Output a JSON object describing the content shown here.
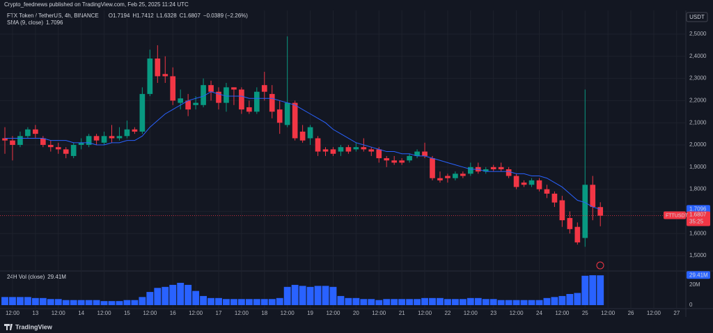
{
  "header": "Crypto_feednews published on TradingView.com, Feb 25, 2025 11:24 UTC",
  "footer": "TradingView",
  "chart_data": {
    "type": "candlestick",
    "title": "FTX Token / TetherUS, 4h, BINANCE",
    "legend_values": [
      "O1.7194",
      "H1.7412",
      "L1.6328",
      "C1.6807",
      "−0.0389 (−2.26%)"
    ],
    "currency": "USDT",
    "symbol": "FTTUSDT",
    "price_badge": "1.6807",
    "countdown": "35:25",
    "up_color": "#089981",
    "down_color": "#f23645",
    "grid": true,
    "open": [
      2.03,
      2.02,
      2.0,
      2.04,
      2.07,
      2.03,
      2.0,
      1.99,
      1.98,
      1.95,
      2.0,
      2.0,
      2.04,
      2.01,
      2.04,
      2.03,
      2.04,
      2.07,
      2.06,
      2.23,
      2.39,
      2.32,
      2.31,
      2.19,
      2.2,
      2.18,
      2.18,
      2.27,
      2.24,
      2.19,
      2.26,
      2.25,
      2.17,
      2.15,
      2.27,
      2.23,
      2.16,
      2.09,
      2.19,
      2.06,
      2.03,
      2.03,
      1.98,
      1.98,
      1.97,
      1.99,
      1.98,
      1.99,
      1.98,
      1.98,
      1.94,
      1.93,
      1.93,
      1.93,
      1.95,
      1.97,
      1.94,
      1.85,
      1.86,
      1.85,
      1.87,
      1.87,
      1.9,
      1.88,
      1.9,
      1.9,
      1.89,
      1.86,
      1.83,
      1.82,
      1.84,
      1.8,
      1.78,
      1.75,
      1.67,
      1.63,
      1.58,
      1.82,
      1.7194
    ],
    "high": [
      2.08,
      2.04,
      2.06,
      2.08,
      2.09,
      2.04,
      2.02,
      2.01,
      1.99,
      2.01,
      2.03,
      2.05,
      2.05,
      2.06,
      2.09,
      2.08,
      2.11,
      2.08,
      2.26,
      2.43,
      2.45,
      2.4,
      2.35,
      2.25,
      2.23,
      2.22,
      2.3,
      2.29,
      2.26,
      2.28,
      2.26,
      2.26,
      2.2,
      2.26,
      2.33,
      2.27,
      2.2,
      2.49,
      2.2,
      2.09,
      2.09,
      2.04,
      1.99,
      1.99,
      2.0,
      2.0,
      2.01,
      2.03,
      1.99,
      1.99,
      1.95,
      1.95,
      1.94,
      1.96,
      1.98,
      2.01,
      1.95,
      1.88,
      1.87,
      1.88,
      1.88,
      1.92,
      1.92,
      1.9,
      1.91,
      1.92,
      1.9,
      1.87,
      1.84,
      1.85,
      1.85,
      1.82,
      1.79,
      1.77,
      1.7,
      1.65,
      2.25,
      1.86,
      1.7412
    ],
    "low": [
      1.96,
      1.93,
      1.99,
      2.03,
      2.03,
      1.99,
      1.97,
      1.96,
      1.94,
      1.94,
      1.98,
      1.99,
      2.0,
      2.0,
      2.01,
      2.02,
      2.03,
      2.05,
      2.05,
      2.22,
      2.28,
      2.28,
      2.18,
      2.16,
      2.13,
      2.16,
      2.17,
      2.2,
      2.16,
      2.15,
      2.18,
      2.14,
      2.14,
      2.14,
      2.2,
      2.12,
      2.05,
      2.08,
      2.02,
      2.01,
      2.0,
      1.95,
      1.95,
      1.95,
      1.95,
      1.96,
      1.97,
      1.97,
      1.95,
      1.92,
      1.9,
      1.91,
      1.91,
      1.92,
      1.94,
      1.94,
      1.84,
      1.83,
      1.83,
      1.84,
      1.85,
      1.86,
      1.87,
      1.87,
      1.88,
      1.88,
      1.85,
      1.8,
      1.81,
      1.81,
      1.79,
      1.76,
      1.72,
      1.63,
      1.6,
      1.55,
      1.54,
      1.66,
      1.6328
    ],
    "close": [
      2.02,
      2.0,
      2.04,
      2.07,
      2.05,
      2.0,
      1.99,
      1.98,
      1.96,
      2.0,
      2.01,
      2.04,
      2.02,
      2.04,
      2.03,
      2.04,
      2.07,
      2.06,
      2.23,
      2.39,
      2.31,
      2.31,
      2.2,
      2.21,
      2.16,
      2.19,
      2.27,
      2.24,
      2.19,
      2.26,
      2.25,
      2.16,
      2.15,
      2.24,
      2.24,
      2.15,
      2.1,
      2.19,
      2.03,
      2.02,
      2.08,
      1.97,
      1.97,
      1.96,
      1.99,
      1.97,
      1.99,
      1.98,
      1.97,
      1.94,
      1.93,
      1.92,
      1.92,
      1.95,
      1.97,
      1.95,
      1.85,
      1.84,
      1.85,
      1.87,
      1.86,
      1.9,
      1.88,
      1.89,
      1.89,
      1.89,
      1.86,
      1.81,
      1.82,
      1.84,
      1.8,
      1.78,
      1.74,
      1.66,
      1.62,
      1.56,
      1.82,
      1.72,
      1.6807
    ],
    "indicator": {
      "name": "SMA (9, close)",
      "value_label": "1.7096",
      "color": "#2962ff",
      "values": [
        2.03,
        2.03,
        2.03,
        2.03,
        2.03,
        2.03,
        2.02,
        2.02,
        2.02,
        2.01,
        2.01,
        2.01,
        2.0,
        2.0,
        2.01,
        2.01,
        2.02,
        2.02,
        2.04,
        2.08,
        2.11,
        2.14,
        2.16,
        2.18,
        2.2,
        2.21,
        2.22,
        2.24,
        2.23,
        2.22,
        2.22,
        2.22,
        2.21,
        2.21,
        2.21,
        2.21,
        2.2,
        2.19,
        2.18,
        2.16,
        2.14,
        2.12,
        2.1,
        2.07,
        2.05,
        2.03,
        2.01,
        2.0,
        1.99,
        1.98,
        1.97,
        1.97,
        1.96,
        1.96,
        1.95,
        1.95,
        1.94,
        1.93,
        1.92,
        1.91,
        1.9,
        1.89,
        1.89,
        1.88,
        1.88,
        1.88,
        1.88,
        1.87,
        1.87,
        1.86,
        1.86,
        1.85,
        1.83,
        1.81,
        1.78,
        1.75,
        1.74,
        1.72,
        1.7096
      ]
    },
    "ylim": [
      1.434,
      2.607
    ],
    "yticks": [
      {
        "value": 1.5,
        "label": "1,5000"
      },
      {
        "value": 1.6,
        "label": "1,6000"
      },
      {
        "value": 1.7,
        "label": "1,7000"
      },
      {
        "value": 1.8,
        "label": "1,8000"
      },
      {
        "value": 1.9,
        "label": "1,9000"
      },
      {
        "value": 2.0,
        "label": "2,0000"
      },
      {
        "value": 2.1,
        "label": "2,1000"
      },
      {
        "value": 2.2,
        "label": "2,2000"
      },
      {
        "value": 2.3,
        "label": "2,3000"
      },
      {
        "value": 2.4,
        "label": "2,4000"
      },
      {
        "value": 2.5,
        "label": "2,5000"
      }
    ],
    "xlim": [
      -0.64,
      89.2
    ],
    "xticks": [
      {
        "value": 1,
        "label": "12:00"
      },
      {
        "value": 4,
        "label": "13"
      },
      {
        "value": 7,
        "label": "12:00"
      },
      {
        "value": 10,
        "label": "14"
      },
      {
        "value": 13,
        "label": "12:00"
      },
      {
        "value": 16,
        "label": "15"
      },
      {
        "value": 19,
        "label": "12:00"
      },
      {
        "value": 22,
        "label": "16"
      },
      {
        "value": 25,
        "label": "12:00"
      },
      {
        "value": 28,
        "label": "17"
      },
      {
        "value": 31,
        "label": "12:00"
      },
      {
        "value": 34,
        "label": "18"
      },
      {
        "value": 37,
        "label": "12:00"
      },
      {
        "value": 40,
        "label": "19"
      },
      {
        "value": 43,
        "label": "12:00"
      },
      {
        "value": 46,
        "label": "20"
      },
      {
        "value": 49,
        "label": "12:00"
      },
      {
        "value": 52,
        "label": "21"
      },
      {
        "value": 55,
        "label": "12:00"
      },
      {
        "value": 58,
        "label": "22"
      },
      {
        "value": 61,
        "label": "12:00"
      },
      {
        "value": 64,
        "label": "23"
      },
      {
        "value": 67,
        "label": "12:00"
      },
      {
        "value": 70,
        "label": "24"
      },
      {
        "value": 73,
        "label": "12:00"
      },
      {
        "value": 76,
        "label": "25"
      },
      {
        "value": 79,
        "label": "12:00"
      },
      {
        "value": 82,
        "label": "26"
      },
      {
        "value": 85,
        "label": "12:00"
      },
      {
        "value": 88,
        "label": "27"
      }
    ],
    "volume": {
      "name": "24H Vol (close)",
      "value_label": "29.41M",
      "color": "#2962ff",
      "ylim": [
        0,
        33
      ],
      "yticks": [
        0,
        {
          "value": 20,
          "label": "20M"
        }
      ],
      "values": [
        8,
        8,
        8,
        8,
        7,
        7,
        6,
        6,
        5,
        5,
        5,
        5,
        5,
        4,
        4,
        4,
        5,
        5,
        8,
        13,
        17,
        18,
        20,
        22,
        20,
        14,
        9,
        7,
        7,
        6,
        6,
        6,
        6,
        6,
        6,
        6,
        7,
        18,
        20,
        19,
        18,
        19,
        19,
        18,
        9,
        7,
        7,
        6,
        6,
        5,
        6,
        6,
        6,
        6,
        6,
        7,
        7,
        7,
        6,
        6,
        6,
        7,
        7,
        6,
        6,
        5,
        5,
        5,
        5,
        5,
        5,
        7,
        8,
        9,
        11,
        12,
        29,
        29.5,
        29.41
      ]
    }
  }
}
